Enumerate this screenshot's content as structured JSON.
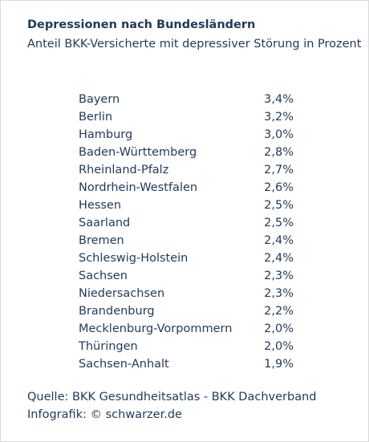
{
  "chart_data": {
    "type": "table",
    "title": "Depressionen nach Bundesländern",
    "subtitle": "Anteil BKK-Versicherte mit depressiver Störung in Prozent",
    "rows": [
      {
        "state": "Bayern",
        "value_label": "3,4%",
        "value": 3.4
      },
      {
        "state": "Berlin",
        "value_label": "3,2%",
        "value": 3.2
      },
      {
        "state": "Hamburg",
        "value_label": "3,0%",
        "value": 3.0
      },
      {
        "state": "Baden-Württemberg",
        "value_label": "2,8%",
        "value": 2.8
      },
      {
        "state": "Rheinland-Pfalz",
        "value_label": "2,7%",
        "value": 2.7
      },
      {
        "state": "Nordrhein-Westfalen",
        "value_label": "2,6%",
        "value": 2.6
      },
      {
        "state": "Hessen",
        "value_label": "2,5%",
        "value": 2.5
      },
      {
        "state": "Saarland",
        "value_label": "2,5%",
        "value": 2.5
      },
      {
        "state": "Bremen",
        "value_label": "2,4%",
        "value": 2.4
      },
      {
        "state": "Schleswig-Holstein",
        "value_label": "2,4%",
        "value": 2.4
      },
      {
        "state": "Sachsen",
        "value_label": "2,3%",
        "value": 2.3
      },
      {
        "state": "Niedersachsen",
        "value_label": "2,3%",
        "value": 2.3
      },
      {
        "state": "Brandenburg",
        "value_label": "2,2%",
        "value": 2.2
      },
      {
        "state": "Mecklenburg-Vorpommern",
        "value_label": "2,0%",
        "value": 2.0
      },
      {
        "state": "Thüringen",
        "value_label": "2,0%",
        "value": 2.0
      },
      {
        "state": "Sachsen-Anhalt",
        "value_label": "1,9%",
        "value": 1.9
      }
    ]
  },
  "footer": {
    "source": "Quelle: BKK Gesundheitsatlas - BKK Dachverband",
    "credit": "Infografik: © schwarzer.de"
  },
  "colors": {
    "text": "#1f3a5a",
    "border": "#d9d9d9",
    "background": "#ffffff"
  }
}
